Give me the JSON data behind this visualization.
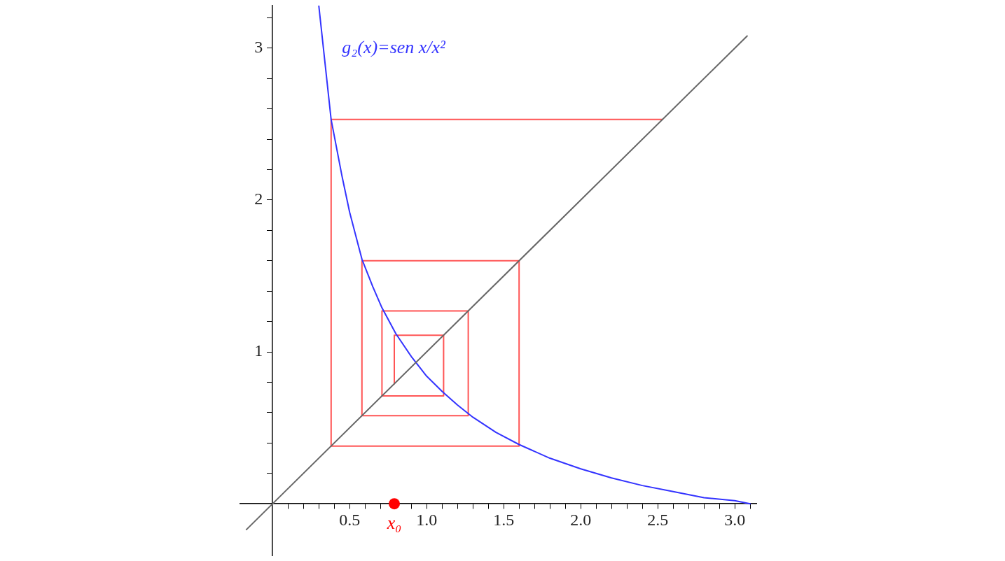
{
  "chart_data": {
    "type": "line",
    "xlim": [
      -0.21,
      3.14
    ],
    "ylim": [
      -0.34,
      3.28
    ],
    "xticks": [
      {
        "value": 0.1,
        "label": null
      },
      {
        "value": 0.2,
        "label": null
      },
      {
        "value": 0.3,
        "label": null
      },
      {
        "value": 0.4,
        "label": null
      },
      0.5,
      {
        "value": 0.6,
        "label": null
      },
      {
        "value": 0.7,
        "label": null
      },
      {
        "value": 0.8,
        "label": null
      },
      {
        "value": 0.9,
        "label": null
      },
      {
        "value": 1,
        "label": "1.0"
      },
      {
        "value": 1.1,
        "label": null
      },
      {
        "value": 1.2,
        "label": null
      },
      {
        "value": 1.3,
        "label": null
      },
      {
        "value": 1.4,
        "label": null
      },
      1.5,
      {
        "value": 1.6,
        "label": null
      },
      {
        "value": 1.7,
        "label": null
      },
      {
        "value": 1.8,
        "label": null
      },
      {
        "value": 1.9,
        "label": null
      },
      {
        "value": 2,
        "label": "2.0"
      },
      {
        "value": 2.1,
        "label": null
      },
      {
        "value": 2.2,
        "label": null
      },
      {
        "value": 2.3,
        "label": null
      },
      {
        "value": 2.4,
        "label": null
      },
      2.5,
      {
        "value": 2.6,
        "label": null
      },
      {
        "value": 2.7,
        "label": null
      },
      {
        "value": 2.8,
        "label": null
      },
      {
        "value": 2.9,
        "label": null
      },
      {
        "value": 3,
        "label": "3.0"
      },
      {
        "value": 3.1,
        "label": null
      }
    ],
    "yticks": [
      {
        "value": 0.2,
        "label": null
      },
      {
        "value": 0.4,
        "label": null
      },
      {
        "value": 0.6,
        "label": null
      },
      {
        "value": 0.8,
        "label": null
      },
      1,
      {
        "value": 1.2,
        "label": null
      },
      {
        "value": 1.4,
        "label": null
      },
      {
        "value": 1.6,
        "label": null
      },
      {
        "value": 1.8,
        "label": null
      },
      2,
      {
        "value": 2.2,
        "label": null
      },
      {
        "value": 2.4,
        "label": null
      },
      {
        "value": 2.6,
        "label": null
      },
      {
        "value": 2.8,
        "label": null
      },
      3,
      {
        "value": 3.2,
        "label": null
      }
    ],
    "grid": false,
    "legend": false,
    "line_style": "solid",
    "series": [
      {
        "type": "line",
        "color": "#666666",
        "marker": "none",
        "x": [
          -0.17,
          3.08
        ],
        "values": [
          -0.17,
          3.08
        ]
      },
      {
        "type": "line",
        "color": "#3333ff",
        "marker": "none",
        "x": [
          0.3,
          0.38,
          0.45,
          0.5,
          0.58,
          0.65,
          0.71,
          0.8,
          0.9,
          1.0,
          1.1,
          1.2,
          1.3,
          1.45,
          1.6,
          1.8,
          2.0,
          2.2,
          2.4,
          2.6,
          2.8,
          3.0,
          3.1
        ],
        "values": [
          3.28,
          2.53,
          2.16,
          1.92,
          1.61,
          1.43,
          1.29,
          1.12,
          0.97,
          0.84,
          0.74,
          0.65,
          0.57,
          0.47,
          0.39,
          0.3,
          0.23,
          0.17,
          0.12,
          0.08,
          0.04,
          0.02,
          0.0
        ]
      },
      {
        "type": "line",
        "color": "#ff5555",
        "marker": "none",
        "x": [
          0.79,
          0.79,
          1.11,
          1.11,
          0.71,
          0.71,
          1.27,
          1.27,
          0.58,
          0.58,
          1.6,
          1.6,
          0.38,
          0.38,
          2.53
        ],
        "values": [
          0.79,
          1.11,
          1.11,
          0.71,
          0.71,
          1.27,
          1.27,
          0.58,
          0.58,
          1.6,
          1.6,
          0.38,
          0.38,
          2.53,
          2.53
        ]
      },
      {
        "type": "scatter",
        "color": "#ff0000",
        "marker": "circle",
        "x": [
          0.79
        ],
        "values": [
          0
        ]
      }
    ],
    "annotations": [
      "g₂(x)=sen x/x²",
      {
        "text": "x₀",
        "x": 0.79,
        "y": 0
      }
    ]
  }
}
